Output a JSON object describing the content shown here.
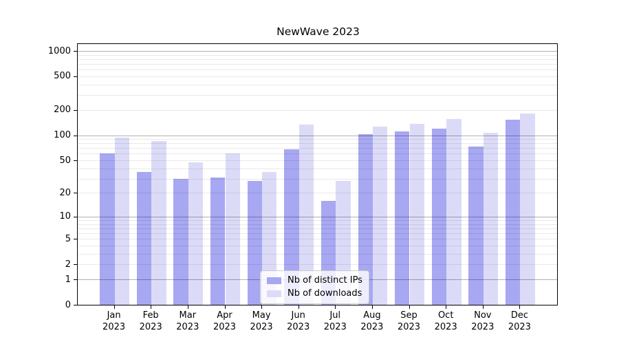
{
  "chart_data": {
    "type": "bar",
    "title": "NewWave 2023",
    "categories": [
      "Jan",
      "Feb",
      "Mar",
      "Apr",
      "May",
      "Jun",
      "Jul",
      "Aug",
      "Sep",
      "Oct",
      "Nov",
      "Dec"
    ],
    "category_year": "2023",
    "series": [
      {
        "name": "Nb of distinct IPs",
        "color": "#a7a7f2",
        "values": [
          60,
          36,
          30,
          31,
          28,
          68,
          16,
          102,
          112,
          120,
          73,
          152
        ]
      },
      {
        "name": "Nb of downloads",
        "color": "#dbdbf8",
        "values": [
          94,
          85,
          47,
          60,
          36,
          133,
          28,
          127,
          136,
          157,
          107,
          180
        ]
      }
    ],
    "y_ticks": [
      0,
      1,
      2,
      5,
      10,
      20,
      50,
      100,
      200,
      500,
      1000
    ],
    "y_major_gridlines": [
      1,
      10,
      100,
      1000
    ],
    "y_scale": "log10(1+value)",
    "ylim": [
      0,
      1205
    ],
    "xlabel": "",
    "ylabel": "",
    "grid": true,
    "legend_position": "lower center"
  },
  "colors": {
    "grid_major": "rgba(0,0,0,0.31)",
    "grid_minor": "rgba(0,0,0,0.085)",
    "axis": "#000000",
    "background": "#ffffff",
    "legend_border": "#cccccc"
  }
}
